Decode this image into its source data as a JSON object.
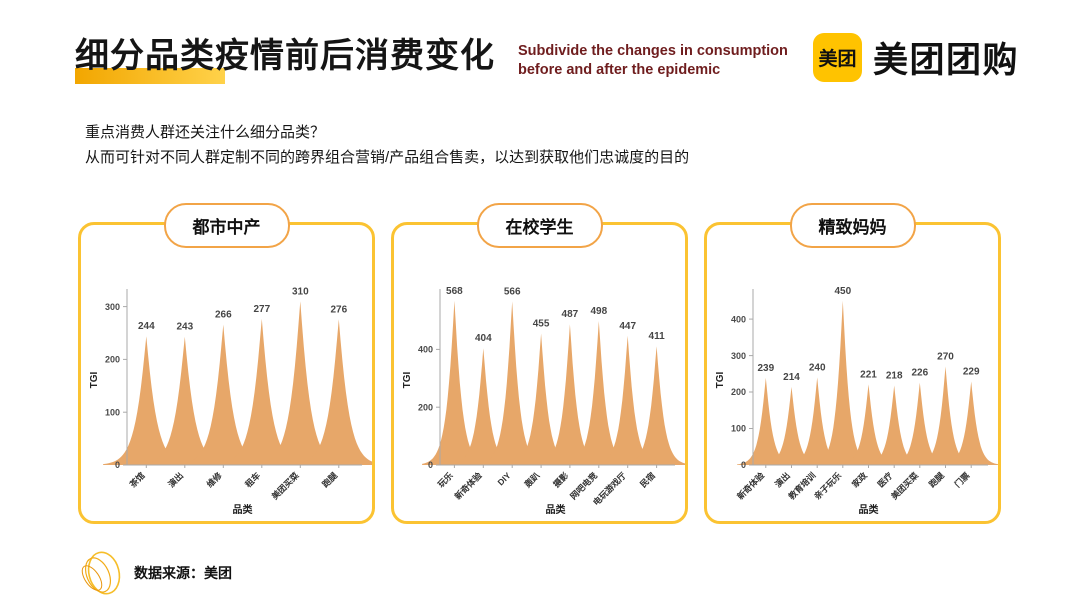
{
  "header": {
    "title": "细分品类疫情前后消费变化",
    "subtitle_line1": "Subdivide the changes in consumption",
    "subtitle_line2": "before and after the epidemic",
    "logo_badge": "美团",
    "logo_text": "美团团购"
  },
  "intro": {
    "line1": "重点消费人群还关注什么细分品类？",
    "line2": "从而可针对不同人群定制不同的跨界组合营销/产品组合售卖，以达到获取他们忠诚度的目的"
  },
  "footer": {
    "source": "数据来源：美团"
  },
  "colors": {
    "panel_border": "#FBC332",
    "pill_border": "#F2A447",
    "spike_fill": "#E7A769",
    "accent_yellow": "#FFC300",
    "subtitle_red": "#6F1D1E"
  },
  "chart_data": [
    {
      "type": "area",
      "title": "都市中产",
      "categories": [
        "茶馆",
        "演出",
        "维修",
        "租车",
        "美团买菜",
        "跑腿"
      ],
      "values": [
        244,
        243,
        266,
        277,
        310,
        276
      ],
      "xlabel": "品类",
      "ylabel": "TGI",
      "yticks": [
        0,
        100,
        200,
        300
      ],
      "ylim": [
        0,
        322
      ],
      "grid": false,
      "legend": "none"
    },
    {
      "type": "area",
      "title": "在校学生",
      "categories": [
        "玩乐",
        "新奇体验",
        "DIY",
        "轰趴",
        "摄影",
        "网吧电竞",
        "电玩游戏厅",
        "民宿"
      ],
      "values": [
        568,
        404,
        566,
        455,
        487,
        498,
        447,
        411
      ],
      "xlabel": "品类",
      "ylabel": "TGI",
      "yticks": [
        0,
        200,
        400
      ],
      "ylim": [
        0,
        588
      ],
      "grid": false,
      "legend": "none"
    },
    {
      "type": "area",
      "title": "精致妈妈",
      "categories": [
        "新奇体验",
        "演出",
        "教育培训",
        "亲子玩乐",
        "家政",
        "医疗",
        "美团买菜",
        "跑腿",
        "门票"
      ],
      "values": [
        239,
        214,
        240,
        450,
        221,
        218,
        226,
        270,
        229
      ],
      "xlabel": "品类",
      "ylabel": "TGI",
      "yticks": [
        0,
        100,
        200,
        300,
        400
      ],
      "ylim": [
        0,
        466
      ],
      "grid": false,
      "legend": "none"
    }
  ]
}
